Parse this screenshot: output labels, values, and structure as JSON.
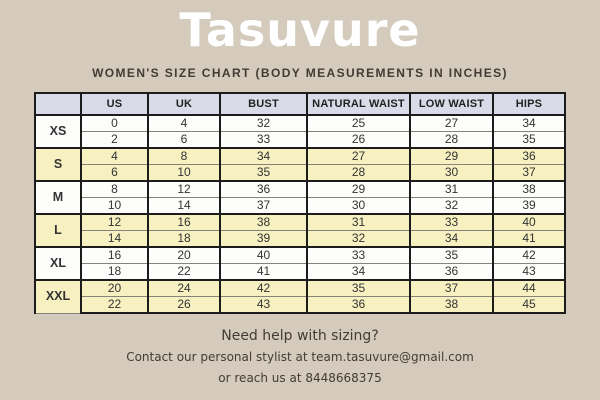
{
  "title": "Tasuvure",
  "subtitle": "WOMEN'S SIZE CHART (BODY MEASUREMENTS IN INCHES)",
  "table": {
    "columns": [
      "",
      "US",
      "UK",
      "BUST",
      "NATURAL WAIST",
      "LOW WAIST",
      "HIPS"
    ],
    "groups": [
      {
        "size": "XS",
        "rows": [
          [
            "0",
            "4",
            "32",
            "25",
            "27",
            "34"
          ],
          [
            "2",
            "6",
            "33",
            "26",
            "28",
            "35"
          ]
        ]
      },
      {
        "size": "S",
        "rows": [
          [
            "4",
            "8",
            "34",
            "27",
            "29",
            "36"
          ],
          [
            "6",
            "10",
            "35",
            "28",
            "30",
            "37"
          ]
        ]
      },
      {
        "size": "M",
        "rows": [
          [
            "8",
            "12",
            "36",
            "29",
            "31",
            "38"
          ],
          [
            "10",
            "14",
            "37",
            "30",
            "32",
            "39"
          ]
        ]
      },
      {
        "size": "L",
        "rows": [
          [
            "12",
            "16",
            "38",
            "31",
            "33",
            "40"
          ],
          [
            "14",
            "18",
            "39",
            "32",
            "34",
            "41"
          ]
        ]
      },
      {
        "size": "XL",
        "rows": [
          [
            "16",
            "20",
            "40",
            "33",
            "35",
            "42"
          ],
          [
            "18",
            "22",
            "41",
            "34",
            "36",
            "43"
          ]
        ]
      },
      {
        "size": "XXL",
        "rows": [
          [
            "20",
            "24",
            "42",
            "35",
            "37",
            "44"
          ],
          [
            "22",
            "26",
            "43",
            "36",
            "38",
            "45"
          ]
        ]
      }
    ]
  },
  "footer": {
    "line1": "Need help with sizing?",
    "line2": "Contact our personal stylist at team.tasuvure@gmail.com",
    "line3": "or reach us at 8448668375"
  },
  "colors": {
    "background": "#d4cbbd",
    "header_cell": "#d9dbe8",
    "row_yellow": "#f7f0c0",
    "row_white": "#fdfdfb",
    "border_dark": "#1c1c1c",
    "title_text": "#ffffff",
    "body_text": "#423c34"
  },
  "chart_data": {
    "type": "table",
    "title": "Tasuvure",
    "subtitle": "WOMEN'S SIZE CHART (BODY MEASUREMENTS IN INCHES)",
    "columns": [
      "SIZE",
      "US",
      "UK",
      "BUST",
      "NATURAL WAIST",
      "LOW WAIST",
      "HIPS"
    ],
    "rows": [
      [
        "XS",
        0,
        4,
        32,
        25,
        27,
        34
      ],
      [
        "XS",
        2,
        6,
        33,
        26,
        28,
        35
      ],
      [
        "S",
        4,
        8,
        34,
        27,
        29,
        36
      ],
      [
        "S",
        6,
        10,
        35,
        28,
        30,
        37
      ],
      [
        "M",
        8,
        12,
        36,
        29,
        31,
        38
      ],
      [
        "M",
        10,
        14,
        37,
        30,
        32,
        39
      ],
      [
        "L",
        12,
        16,
        38,
        31,
        33,
        40
      ],
      [
        "L",
        14,
        18,
        39,
        32,
        34,
        41
      ],
      [
        "XL",
        16,
        20,
        40,
        33,
        35,
        42
      ],
      [
        "XL",
        18,
        22,
        41,
        34,
        36,
        43
      ],
      [
        "XXL",
        20,
        24,
        42,
        35,
        37,
        44
      ],
      [
        "XXL",
        22,
        26,
        43,
        36,
        38,
        45
      ]
    ],
    "notes": [
      "Need help with sizing?",
      "Contact our personal stylist at team.tasuvure@gmail.com",
      "or reach us at 8448668375"
    ]
  }
}
